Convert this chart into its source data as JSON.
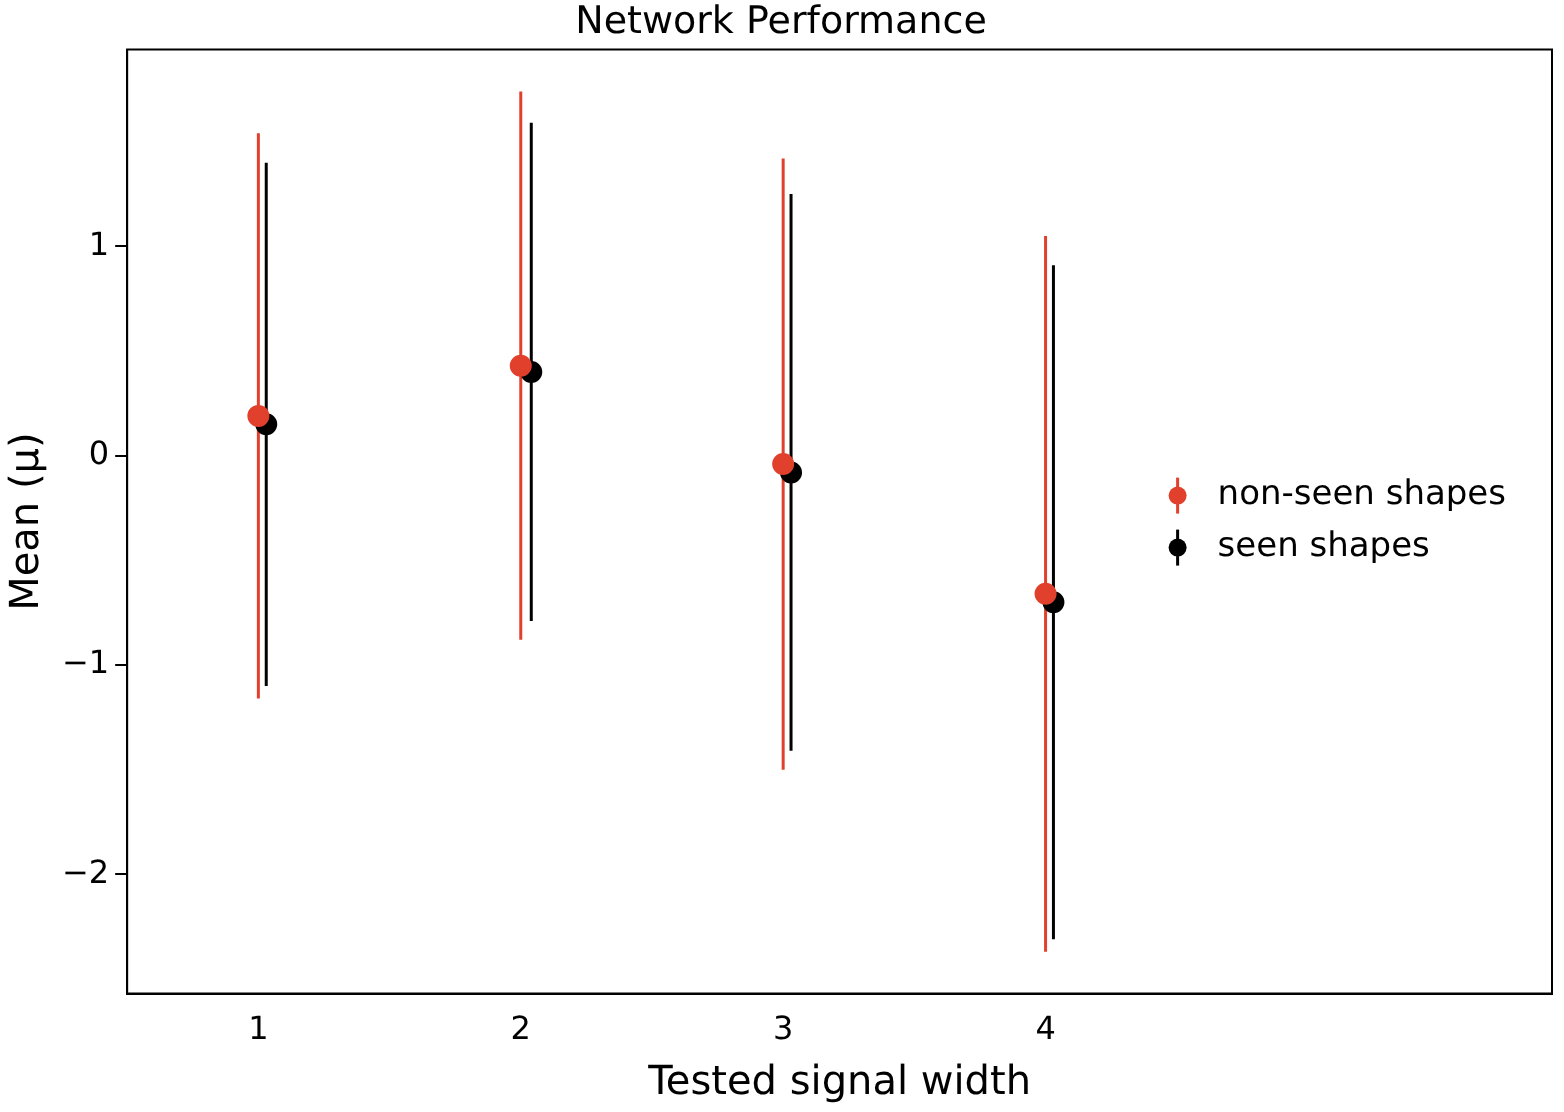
{
  "chart_data": {
    "type": "scatter",
    "title": "Network Performance",
    "xlabel": "Tested signal width",
    "ylabel": "Mean (μ)",
    "xlim": [
      0.5,
      5.93
    ],
    "xticks": [
      1,
      2,
      3,
      4
    ],
    "ylim": [
      -2.57,
      1.94
    ],
    "yticks": [
      {
        "value": -2,
        "label": "−2"
      },
      {
        "value": -1,
        "label": "−1"
      },
      0,
      1
    ],
    "series": [
      {
        "name": "non-seen shapes",
        "color": "#e0402c",
        "x": [
          1,
          2,
          3,
          4
        ],
        "values": [
          0.19,
          0.43,
          -0.04,
          -0.66
        ],
        "errors": [
          1.35,
          1.31,
          1.46,
          1.71
        ]
      },
      {
        "name": "seen shapes",
        "color": "#000000",
        "x": [
          1.03,
          2.04,
          3.03,
          4.03
        ],
        "values": [
          0.15,
          0.4,
          -0.08,
          -0.7
        ],
        "errors": [
          1.25,
          1.19,
          1.33,
          1.61
        ]
      }
    ],
    "grid": false,
    "legend": "right",
    "marker": "circle"
  }
}
